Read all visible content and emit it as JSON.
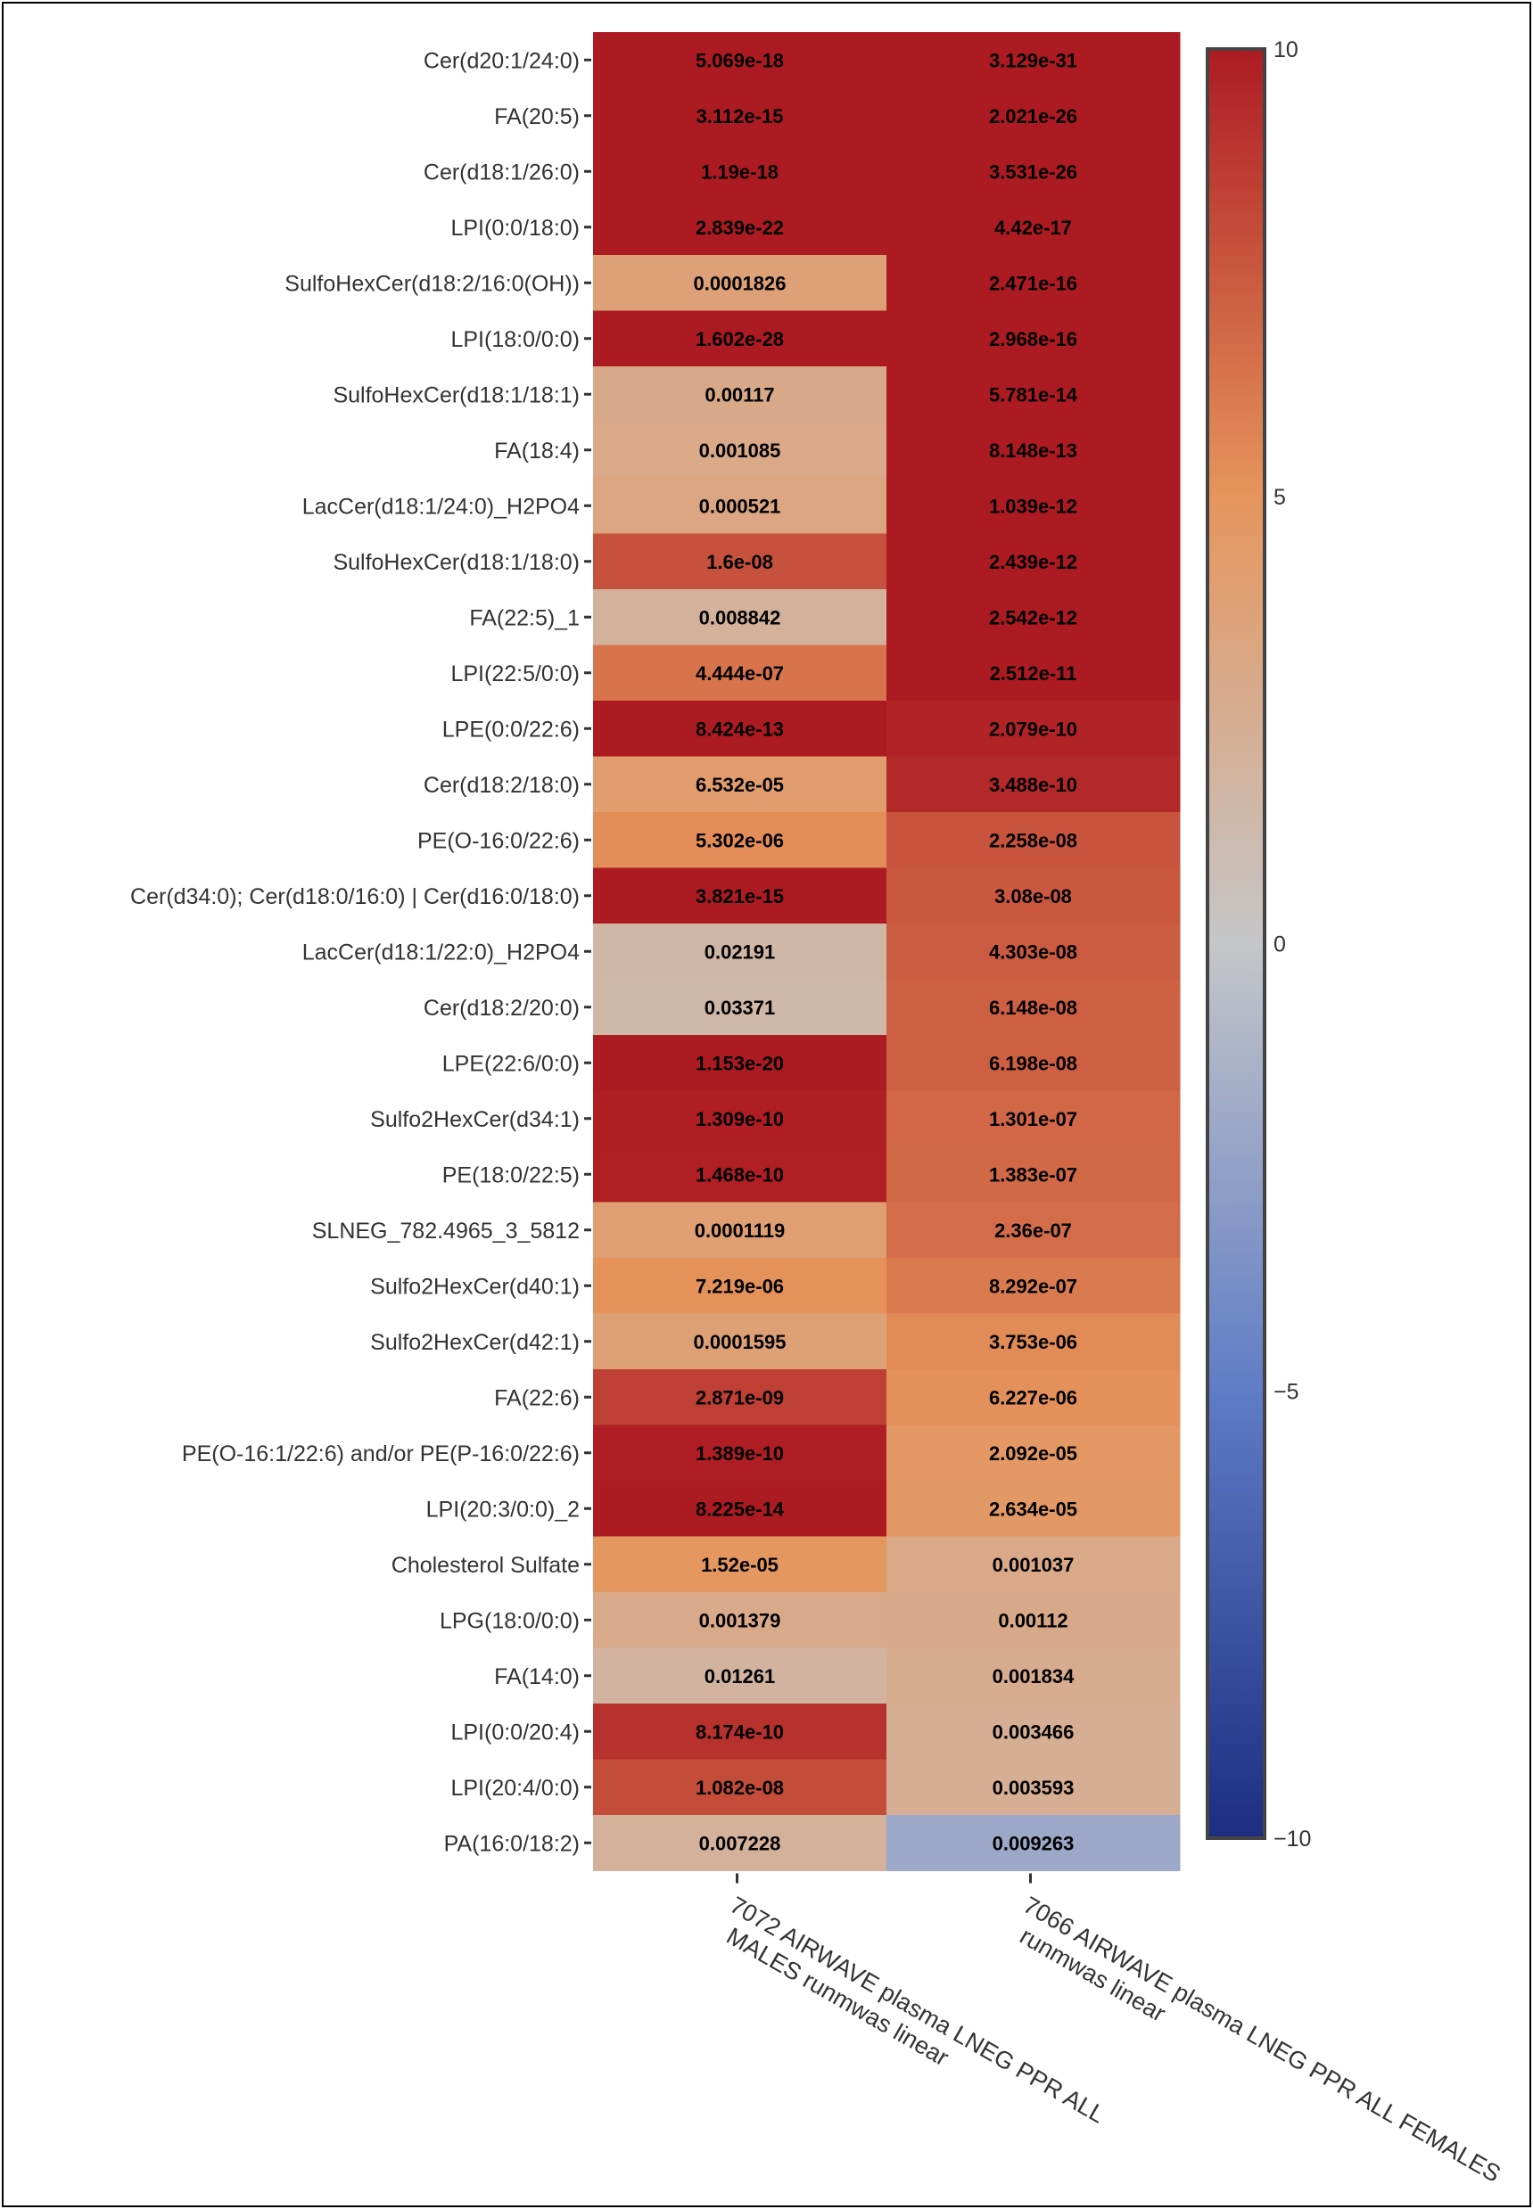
{
  "chart_data": {
    "type": "heatmap",
    "columns": [
      [
        "7072 AIRWAVE plasma LNEG PPR ALL",
        "MALES runmwas linear"
      ],
      [
        "7066 AIRWAVE plasma LNEG PPR ALL FEMALES",
        "runmwas linear"
      ]
    ],
    "rows": [
      "Cer(d20:1/24:0)",
      "FA(20:5)",
      "Cer(d18:1/26:0)",
      "LPI(0:0/18:0)",
      "SulfoHexCer(d18:2/16:0(OH))",
      "LPI(18:0/0:0)",
      "SulfoHexCer(d18:1/18:1)",
      "FA(18:4)",
      "LacCer(d18:1/24:0)_H2PO4",
      "SulfoHexCer(d18:1/18:0)",
      "FA(22:5)_1",
      "LPI(22:5/0:0)",
      "LPE(0:0/22:6)",
      "Cer(d18:2/18:0)",
      "PE(O-16:0/22:6)",
      "Cer(d34:0); Cer(d18:0/16:0) | Cer(d16:0/18:0)",
      "LacCer(d18:1/22:0)_H2PO4",
      "Cer(d18:2/20:0)",
      "LPE(22:6/0:0)",
      "Sulfo2HexCer(d34:1)",
      "PE(18:0/22:5)",
      "SLNEG_782.4965_3_5812",
      "Sulfo2HexCer(d40:1)",
      "Sulfo2HexCer(d42:1)",
      "FA(22:6)",
      "PE(O-16:1/22:6) and/or PE(P-16:0/22:6)",
      "LPI(20:3/0:0)_2",
      "Cholesterol Sulfate",
      "LPG(18:0/0:0)",
      "FA(14:0)",
      "LPI(0:0/20:4)",
      "LPI(20:4/0:0)",
      "PA(16:0/18:2)"
    ],
    "cell_text": [
      [
        "5.069e-18",
        "3.129e-31"
      ],
      [
        "3.112e-15",
        "2.021e-26"
      ],
      [
        "1.19e-18",
        "3.531e-26"
      ],
      [
        "2.839e-22",
        "4.42e-17"
      ],
      [
        "0.0001826",
        "2.471e-16"
      ],
      [
        "1.602e-28",
        "2.968e-16"
      ],
      [
        "0.00117",
        "5.781e-14"
      ],
      [
        "0.001085",
        "8.148e-13"
      ],
      [
        "0.000521",
        "1.039e-12"
      ],
      [
        "1.6e-08",
        "2.439e-12"
      ],
      [
        "0.008842",
        "2.542e-12"
      ],
      [
        "4.444e-07",
        "2.512e-11"
      ],
      [
        "8.424e-13",
        "2.079e-10"
      ],
      [
        "6.532e-05",
        "3.488e-10"
      ],
      [
        "5.302e-06",
        "2.258e-08"
      ],
      [
        "3.821e-15",
        "3.08e-08"
      ],
      [
        "0.02191",
        "4.303e-08"
      ],
      [
        "0.03371",
        "6.148e-08"
      ],
      [
        "1.153e-20",
        "6.198e-08"
      ],
      [
        "1.309e-10",
        "1.301e-07"
      ],
      [
        "1.468e-10",
        "1.383e-07"
      ],
      [
        "0.0001119",
        "2.36e-07"
      ],
      [
        "7.219e-06",
        "8.292e-07"
      ],
      [
        "0.0001595",
        "3.753e-06"
      ],
      [
        "2.871e-09",
        "6.227e-06"
      ],
      [
        "1.389e-10",
        "2.092e-05"
      ],
      [
        "8.225e-14",
        "2.634e-05"
      ],
      [
        "1.52e-05",
        "0.001037"
      ],
      [
        "0.001379",
        "0.00112"
      ],
      [
        "0.01261",
        "0.001834"
      ],
      [
        "8.174e-10",
        "0.003466"
      ],
      [
        "1.082e-08",
        "0.003593"
      ],
      [
        "0.007228",
        "0.009263"
      ]
    ],
    "signs": [
      [
        1,
        1
      ],
      [
        1,
        1
      ],
      [
        1,
        1
      ],
      [
        1,
        1
      ],
      [
        1,
        1
      ],
      [
        1,
        1
      ],
      [
        1,
        1
      ],
      [
        1,
        1
      ],
      [
        1,
        1
      ],
      [
        1,
        1
      ],
      [
        1,
        1
      ],
      [
        1,
        1
      ],
      [
        1,
        1
      ],
      [
        1,
        1
      ],
      [
        1,
        1
      ],
      [
        1,
        1
      ],
      [
        1,
        1
      ],
      [
        1,
        1
      ],
      [
        1,
        1
      ],
      [
        1,
        1
      ],
      [
        1,
        1
      ],
      [
        1,
        1
      ],
      [
        1,
        1
      ],
      [
        1,
        1
      ],
      [
        1,
        1
      ],
      [
        1,
        1
      ],
      [
        1,
        1
      ],
      [
        1,
        1
      ],
      [
        1,
        1
      ],
      [
        1,
        1
      ],
      [
        1,
        1
      ],
      [
        1,
        1
      ],
      [
        1,
        -1
      ]
    ],
    "colorscale": {
      "min": -10,
      "max": 10,
      "ticks": [
        10,
        5,
        0,
        -5,
        -10
      ],
      "tick_labels": [
        "10",
        "5",
        "0",
        "−5",
        "−10"
      ],
      "stops": [
        "#1c2d82",
        "#5f7cc6",
        "#c5c6c8",
        "#e6955c",
        "#ad1b22"
      ]
    }
  }
}
